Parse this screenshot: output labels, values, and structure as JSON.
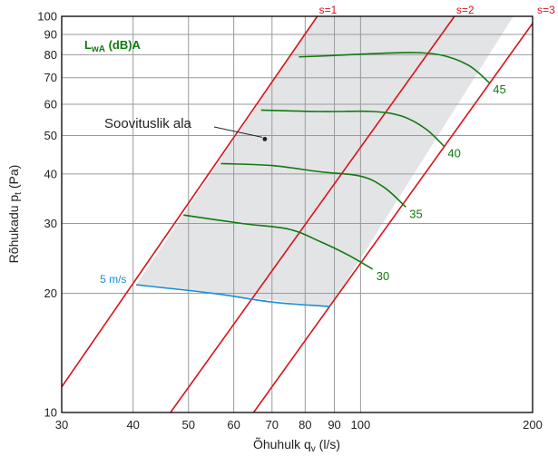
{
  "chart_data": {
    "type": "line",
    "xscale": "log",
    "yscale": "log",
    "xlim": [
      30,
      200
    ],
    "ylim": [
      10,
      100
    ],
    "xlabel": "Õhuhulk q",
    "xlabel_sub": "v",
    "xlabel_unit": " (l/s)",
    "ylabel": "Rõhukadu p",
    "ylabel_sub": "t",
    "ylabel_unit": " (Pa)",
    "x_ticks": [
      30,
      40,
      50,
      60,
      70,
      80,
      90,
      100,
      200
    ],
    "y_ticks": [
      10,
      20,
      30,
      40,
      50,
      60,
      70,
      80,
      90,
      100
    ],
    "x_tick_labels": [
      "30",
      "40",
      "50",
      "60",
      "70",
      "80",
      "90",
      "100",
      "200"
    ],
    "y_tick_labels": [
      "10",
      "20",
      "30",
      "40",
      "50",
      "60",
      "70",
      "80",
      "90",
      "100"
    ],
    "grid": true,
    "legend_title": "L",
    "legend_title_sub": "wA",
    "legend_title_rest": " (dB)A",
    "annotation": "Soovituslik ala",
    "annotation_point": [
      68,
      49
    ],
    "recommended_area": [
      [
        40.5,
        21
      ],
      [
        84,
        100
      ],
      [
        185,
        100
      ],
      [
        88.5,
        18.5
      ]
    ],
    "s_lines": [
      {
        "name": "s=1",
        "points": [
          [
            30,
            11.6
          ],
          [
            84,
            100
          ]
        ]
      },
      {
        "name": "s=2",
        "points": [
          [
            46.5,
            10
          ],
          [
            146,
            100
          ]
        ]
      },
      {
        "name": "s=3",
        "points": [
          [
            65,
            10
          ],
          [
            200,
            96
          ]
        ]
      }
    ],
    "series": [
      {
        "name": "45",
        "points": [
          [
            78,
            79
          ],
          [
            88,
            79.5
          ],
          [
            105,
            80.5
          ],
          [
            125,
            81
          ],
          [
            140,
            79.5
          ],
          [
            155,
            75
          ],
          [
            168,
            68
          ]
        ]
      },
      {
        "name": "40",
        "points": [
          [
            67,
            58
          ],
          [
            85,
            57.5
          ],
          [
            105,
            57.5
          ],
          [
            118,
            56
          ],
          [
            130,
            52
          ],
          [
            140,
            47
          ]
        ]
      },
      {
        "name": "35",
        "points": [
          [
            57,
            42.5
          ],
          [
            70,
            42
          ],
          [
            85,
            40.5
          ],
          [
            100,
            39.5
          ],
          [
            110,
            37
          ],
          [
            120,
            33
          ]
        ]
      },
      {
        "name": "30",
        "points": [
          [
            49,
            31.5
          ],
          [
            62,
            30
          ],
          [
            75,
            29
          ],
          [
            85,
            27
          ],
          [
            95,
            25
          ],
          [
            105,
            23
          ]
        ]
      },
      {
        "name": "5 m/s",
        "points": [
          [
            40.5,
            21
          ],
          [
            55,
            20
          ],
          [
            70,
            19
          ],
          [
            88.5,
            18.5
          ]
        ]
      }
    ],
    "velocity_label": "5 m/s",
    "series_labels": [
      "45",
      "40",
      "35",
      "30"
    ]
  }
}
